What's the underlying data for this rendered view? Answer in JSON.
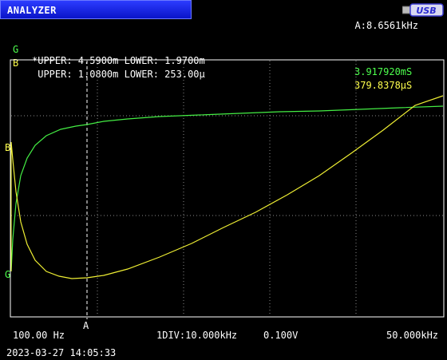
{
  "window": {
    "title": "ANALYZER",
    "usb_label": "USB"
  },
  "readout": {
    "frequency": "A:8.6561kHz"
  },
  "traces": [
    {
      "id": "G",
      "limits": "*UPPER: 4.5900m LOWER: 1.9700m",
      "value": "3.917920mS",
      "color": "#4dff4d"
    },
    {
      "id": "B",
      "limits": " UPPER: 1.0800m LOWER: 253.00µ",
      "value": "379.8378µS",
      "color": "#ffff4d"
    }
  ],
  "axis": {
    "start": "100.00 Hz",
    "division": "1DIV:10.000kHz",
    "volt": "0.100V",
    "stop": "50.000kHz"
  },
  "cursor": {
    "label": "A"
  },
  "side_labels": {
    "b": "B",
    "g": "G"
  },
  "status": {
    "timestamp": "2023-03-27 14:05:33"
  }
}
